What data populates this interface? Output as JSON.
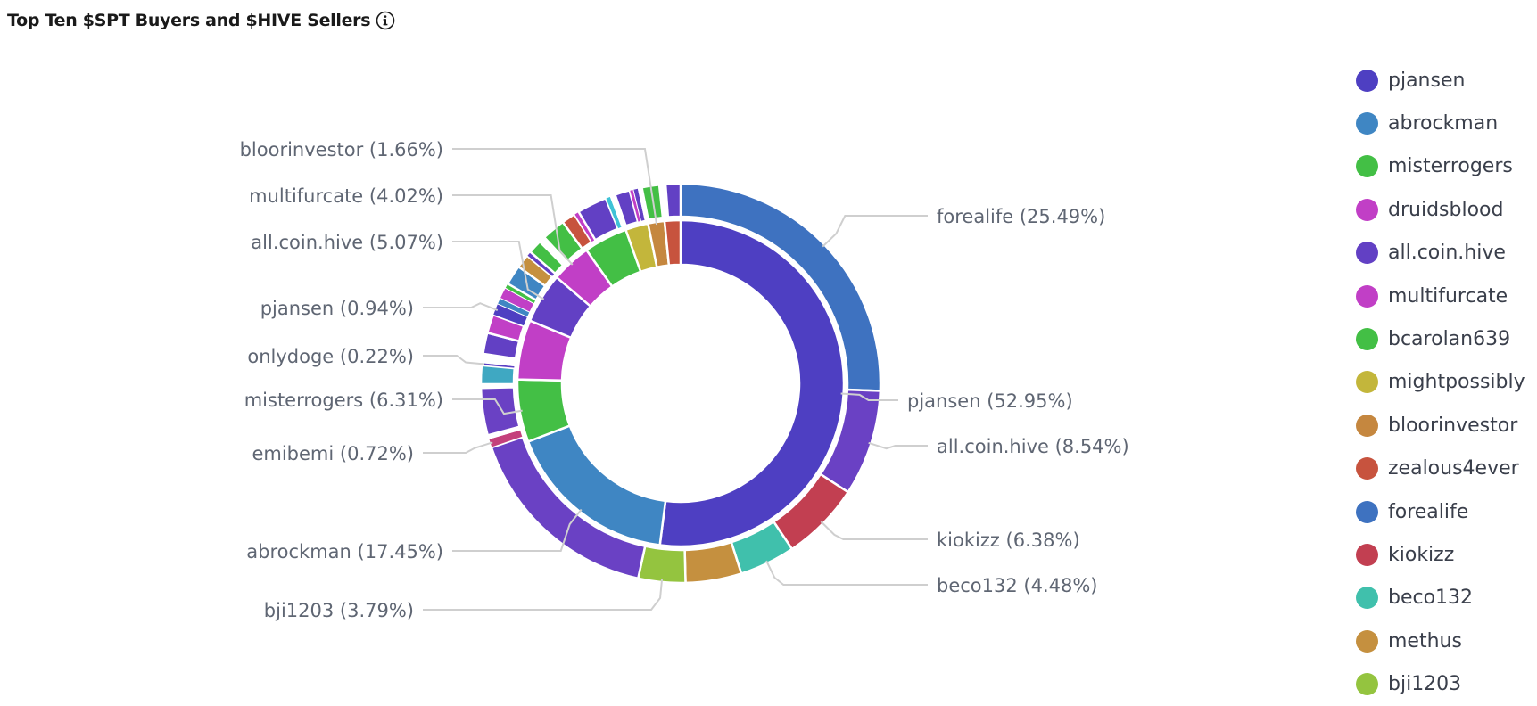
{
  "title": "Top Ten $SPT Buyers and $HIVE Sellers",
  "icons": {
    "info": "info-circle-icon"
  },
  "chart_data": {
    "type": "pie",
    "subtype": "nested-donut",
    "title": "Top Ten $SPT Buyers and $HIVE Sellers",
    "inner_ring": [
      {
        "name": "pjansen",
        "value": 52.95,
        "color": "#4e3fc2"
      },
      {
        "name": "abrockman",
        "value": 17.45,
        "color": "#3f86c3"
      },
      {
        "name": "misterrogers",
        "value": 6.31,
        "color": "#43bf45"
      },
      {
        "name": "druidsblood",
        "value": 6.0,
        "color": "#c13fc6"
      },
      {
        "name": "all.coin.hive",
        "value": 5.07,
        "color": "#6240c4"
      },
      {
        "name": "multifurcate",
        "value": 4.02,
        "color": "#c13fc6"
      },
      {
        "name": "bcarolan639",
        "value": 4.4,
        "color": "#43bf45"
      },
      {
        "name": "mightpossibly",
        "value": 2.3,
        "color": "#c3b63b"
      },
      {
        "name": "bloorinvestor",
        "value": 1.66,
        "color": "#c5873f"
      },
      {
        "name": "zealous4ever",
        "value": 1.6,
        "color": "#c7533e"
      }
    ],
    "outer_ring": [
      {
        "name": "forealife",
        "value": 25.49,
        "color": "#3e72c0"
      },
      {
        "name": "all.coin.hive",
        "value": 8.54,
        "color": "#6a41c4"
      },
      {
        "name": "kiokizz",
        "value": 6.38,
        "color": "#c23f51"
      },
      {
        "name": "beco132",
        "value": 4.48,
        "color": "#40c0ac"
      },
      {
        "name": "methus",
        "value": 4.5,
        "color": "#c5903f"
      },
      {
        "name": "bji1203",
        "value": 3.79,
        "color": "#94c43f"
      },
      {
        "name": "",
        "value": 16.3,
        "color": "#6a41c4"
      },
      {
        "name": "emibemi",
        "value": 0.72,
        "color": "#c4407c"
      },
      {
        "name": "",
        "value": 0.3,
        "color": "#ffffff"
      },
      {
        "name": "",
        "value": 3.8,
        "color": "#6a41c4"
      },
      {
        "name": "",
        "value": 0.3,
        "color": "#ffffff"
      },
      {
        "name": "",
        "value": 1.5,
        "color": "#3fa8c2"
      },
      {
        "name": "onlydoge",
        "value": 0.22,
        "color": "#5b3fc4"
      },
      {
        "name": "",
        "value": 0.7,
        "color": "#ffffff"
      },
      {
        "name": "",
        "value": 1.7,
        "color": "#6240c4"
      },
      {
        "name": "",
        "value": 1.5,
        "color": "#c13fc6"
      },
      {
        "name": "pjansen",
        "value": 0.94,
        "color": "#4e3fc2"
      },
      {
        "name": "",
        "value": 0.5,
        "color": "#3f86c3"
      },
      {
        "name": "",
        "value": 0.9,
        "color": "#c13fc6"
      },
      {
        "name": "",
        "value": 0.4,
        "color": "#43bf45"
      },
      {
        "name": "",
        "value": 1.6,
        "color": "#3f86c3"
      },
      {
        "name": "",
        "value": 1.1,
        "color": "#c5903f"
      },
      {
        "name": "",
        "value": 0.4,
        "color": "#6240c4"
      },
      {
        "name": "",
        "value": 1.1,
        "color": "#43bf45"
      },
      {
        "name": "",
        "value": 0.5,
        "color": "#ffffff"
      },
      {
        "name": "",
        "value": 1.9,
        "color": "#43bf45"
      },
      {
        "name": "",
        "value": 1.1,
        "color": "#c7533e"
      },
      {
        "name": "",
        "value": 0.4,
        "color": "#c13fc6"
      },
      {
        "name": "",
        "value": 2.4,
        "color": "#6240c4"
      },
      {
        "name": "",
        "value": 0.4,
        "color": "#3fc2d6"
      },
      {
        "name": "",
        "value": 0.4,
        "color": "#ffffff"
      },
      {
        "name": "",
        "value": 1.2,
        "color": "#6240c4"
      },
      {
        "name": "",
        "value": 0.3,
        "color": "#c13fc6"
      },
      {
        "name": "",
        "value": 0.4,
        "color": "#6240c4"
      },
      {
        "name": "",
        "value": 0.3,
        "color": "#ffffff"
      },
      {
        "name": "",
        "value": 1.4,
        "color": "#43bf45"
      },
      {
        "name": "",
        "value": 0.5,
        "color": "#ffffff"
      },
      {
        "name": "",
        "value": 1.2,
        "color": "#6240c4"
      }
    ],
    "labels": [
      {
        "text": "forealife (25.49%)",
        "ring": "outer",
        "index": 0,
        "side": "right"
      },
      {
        "text": "pjansen (52.95%)",
        "ring": "inner",
        "index": 0,
        "side": "right"
      },
      {
        "text": "all.coin.hive (8.54%)",
        "ring": "outer",
        "index": 1,
        "side": "right"
      },
      {
        "text": "kiokizz (6.38%)",
        "ring": "outer",
        "index": 2,
        "side": "right"
      },
      {
        "text": "beco132 (4.48%)",
        "ring": "outer",
        "index": 3,
        "side": "right"
      },
      {
        "text": "bji1203 (3.79%)",
        "ring": "outer",
        "index": 5,
        "side": "left"
      },
      {
        "text": "abrockman (17.45%)",
        "ring": "inner",
        "index": 1,
        "side": "left"
      },
      {
        "text": "emibemi (0.72%)",
        "ring": "outer",
        "index": 7,
        "side": "left"
      },
      {
        "text": "misterrogers (6.31%)",
        "ring": "inner",
        "index": 2,
        "side": "left"
      },
      {
        "text": "onlydoge (0.22%)",
        "ring": "outer",
        "index": 12,
        "side": "left"
      },
      {
        "text": "pjansen (0.94%)",
        "ring": "outer",
        "index": 16,
        "side": "left"
      },
      {
        "text": "all.coin.hive (5.07%)",
        "ring": "inner",
        "index": 4,
        "side": "left"
      },
      {
        "text": "multifurcate (4.02%)",
        "ring": "inner",
        "index": 5,
        "side": "left"
      },
      {
        "text": "bloorinvestor (1.66%)",
        "ring": "inner",
        "index": 8,
        "side": "left"
      }
    ],
    "legend": [
      {
        "name": "pjansen",
        "color": "#4e3fc2"
      },
      {
        "name": "abrockman",
        "color": "#3f86c3"
      },
      {
        "name": "misterrogers",
        "color": "#43bf45"
      },
      {
        "name": "druidsblood",
        "color": "#c13fc6"
      },
      {
        "name": "all.coin.hive",
        "color": "#6240c4"
      },
      {
        "name": "multifurcate",
        "color": "#c13fc6"
      },
      {
        "name": "bcarolan639",
        "color": "#43bf45"
      },
      {
        "name": "mightpossibly",
        "color": "#c3b63b"
      },
      {
        "name": "bloorinvestor",
        "color": "#c5873f"
      },
      {
        "name": "zealous4ever",
        "color": "#c7533e"
      },
      {
        "name": "forealife",
        "color": "#3e72c0"
      },
      {
        "name": "kiokizz",
        "color": "#c23f51"
      },
      {
        "name": "beco132",
        "color": "#40c0ac"
      },
      {
        "name": "methus",
        "color": "#c5903f"
      },
      {
        "name": "bji1203",
        "color": "#94c43f"
      }
    ],
    "legend_position": "right"
  }
}
